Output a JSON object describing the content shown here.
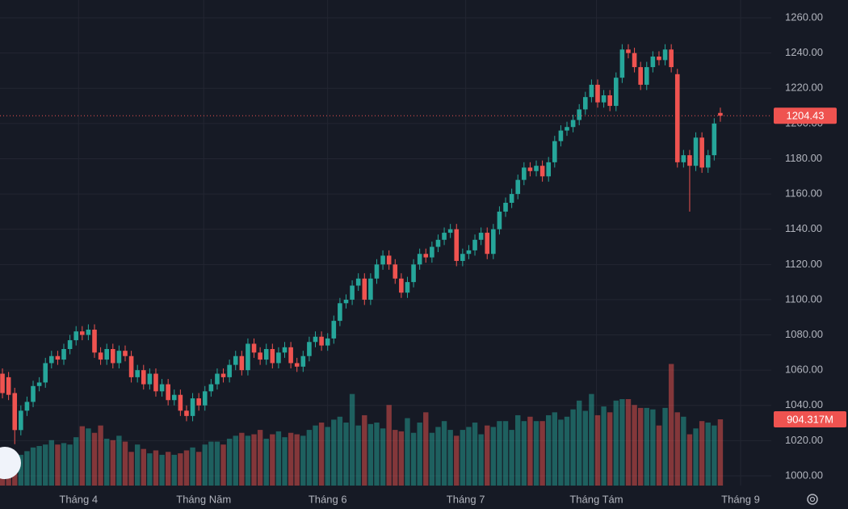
{
  "chart_data": {
    "type": "candlestick",
    "up_color": "#26a69a",
    "down_color": "#ef5350",
    "grid": true,
    "xlim": [
      -0.4,
      125.3
    ],
    "xticks": [
      {
        "value": 12.4,
        "label": "Tháng 4"
      },
      {
        "value": 32.8,
        "label": "Tháng Năm"
      },
      {
        "value": 53,
        "label": "Tháng 6"
      },
      {
        "value": 75.5,
        "label": "Tháng 7"
      },
      {
        "value": 96.8,
        "label": "Tháng Tám"
      },
      {
        "value": 120.3,
        "label": "Tháng 9"
      }
    ],
    "ylim": [
      994.5,
      1270.1
    ],
    "yticks": [
      {
        "value": 1000,
        "label": "1000.00"
      },
      {
        "value": 1020,
        "label": "1020.00"
      },
      {
        "value": 1040,
        "label": "1040.00"
      },
      {
        "value": 1060,
        "label": "1060.00"
      },
      {
        "value": 1080,
        "label": "1080.00"
      },
      {
        "value": 1100,
        "label": "1100.00"
      },
      {
        "value": 1120,
        "label": "1120.00"
      },
      {
        "value": 1140,
        "label": "1140.00"
      },
      {
        "value": 1160,
        "label": "1160.00"
      },
      {
        "value": 1180,
        "label": "1180.00"
      },
      {
        "value": 1200,
        "label": "1200.00"
      },
      {
        "value": 1220,
        "label": "1220.00"
      },
      {
        "value": 1240,
        "label": "1240.00"
      },
      {
        "value": 1260,
        "label": "1260.00"
      }
    ],
    "y2lim": [
      0,
      6628
    ],
    "open": [
      1058,
      1056,
      1047,
      1026,
      1037,
      1042,
      1051,
      1053,
      1064,
      1068,
      1066,
      1072,
      1077,
      1082,
      1080,
      1083,
      1070,
      1066,
      1072,
      1064,
      1071,
      1068,
      1056,
      1060,
      1052,
      1058,
      1048,
      1052,
      1043,
      1046,
      1037,
      1034,
      1044,
      1040,
      1048,
      1052,
      1058,
      1056,
      1063,
      1068,
      1060,
      1075,
      1070,
      1066,
      1072,
      1064,
      1070,
      1073,
      1064,
      1062,
      1068,
      1076,
      1079,
      1074,
      1078,
      1088,
      1098,
      1100,
      1108,
      1112,
      1100,
      1112,
      1120,
      1125,
      1120,
      1112,
      1104,
      1110,
      1120,
      1126,
      1124,
      1130,
      1134,
      1138,
      1140,
      1122,
      1126,
      1128,
      1134,
      1138,
      1126,
      1140,
      1150,
      1155,
      1160,
      1168,
      1175,
      1173,
      1176,
      1170,
      1178,
      1190,
      1196,
      1198,
      1202,
      1208,
      1215,
      1222,
      1212,
      1216,
      1210,
      1226,
      1242,
      1240,
      1232,
      1222,
      1232,
      1238,
      1236,
      1242,
      1228,
      1178,
      1182,
      1176,
      1192,
      1175,
      1182,
      1206
    ],
    "high": [
      1061,
      1059,
      1050,
      1040,
      1045,
      1054,
      1056,
      1067,
      1071,
      1071,
      1075,
      1080,
      1085,
      1085,
      1086,
      1086,
      1073,
      1075,
      1075,
      1074,
      1074,
      1071,
      1063,
      1063,
      1061,
      1061,
      1055,
      1055,
      1049,
      1049,
      1040,
      1047,
      1047,
      1051,
      1055,
      1061,
      1061,
      1066,
      1071,
      1071,
      1078,
      1078,
      1073,
      1075,
      1075,
      1073,
      1076,
      1076,
      1067,
      1071,
      1079,
      1082,
      1082,
      1081,
      1091,
      1101,
      1103,
      1111,
      1115,
      1115,
      1115,
      1123,
      1128,
      1128,
      1123,
      1115,
      1113,
      1123,
      1129,
      1129,
      1133,
      1137,
      1141,
      1143,
      1143,
      1129,
      1131,
      1137,
      1141,
      1141,
      1143,
      1153,
      1158,
      1163,
      1171,
      1178,
      1178,
      1179,
      1179,
      1181,
      1193,
      1199,
      1201,
      1205,
      1211,
      1218,
      1225,
      1225,
      1219,
      1219,
      1229,
      1245,
      1245,
      1243,
      1235,
      1235,
      1241,
      1241,
      1245,
      1245,
      1231,
      1185,
      1185,
      1195,
      1195,
      1185,
      1203,
      1209
    ],
    "low": [
      1044,
      1043,
      1018,
      1023,
      1034,
      1039,
      1048,
      1050,
      1061,
      1063,
      1063,
      1069,
      1074,
      1077,
      1077,
      1067,
      1063,
      1063,
      1061,
      1061,
      1065,
      1053,
      1053,
      1049,
      1049,
      1045,
      1045,
      1040,
      1040,
      1034,
      1031,
      1031,
      1037,
      1037,
      1045,
      1049,
      1053,
      1053,
      1060,
      1057,
      1057,
      1067,
      1063,
      1063,
      1061,
      1061,
      1067,
      1061,
      1059,
      1059,
      1065,
      1073,
      1071,
      1071,
      1075,
      1085,
      1095,
      1097,
      1105,
      1097,
      1097,
      1109,
      1117,
      1117,
      1109,
      1101,
      1101,
      1107,
      1117,
      1121,
      1121,
      1127,
      1131,
      1135,
      1119,
      1119,
      1123,
      1125,
      1131,
      1123,
      1123,
      1137,
      1147,
      1152,
      1157,
      1165,
      1170,
      1170,
      1167,
      1167,
      1175,
      1187,
      1193,
      1195,
      1199,
      1205,
      1212,
      1209,
      1209,
      1207,
      1207,
      1223,
      1237,
      1229,
      1219,
      1219,
      1229,
      1233,
      1233,
      1229,
      1175,
      1175,
      1150,
      1173,
      1172,
      1172,
      1179,
      1201
    ],
    "close": [
      1047,
      1046,
      1026,
      1037,
      1042,
      1051,
      1053,
      1064,
      1068,
      1066,
      1072,
      1077,
      1082,
      1080,
      1083,
      1070,
      1066,
      1072,
      1064,
      1071,
      1068,
      1056,
      1060,
      1052,
      1058,
      1048,
      1052,
      1043,
      1046,
      1037,
      1034,
      1044,
      1040,
      1048,
      1052,
      1058,
      1056,
      1063,
      1068,
      1060,
      1075,
      1070,
      1066,
      1072,
      1064,
      1070,
      1073,
      1064,
      1062,
      1068,
      1076,
      1079,
      1074,
      1078,
      1088,
      1098,
      1100,
      1108,
      1112,
      1100,
      1112,
      1120,
      1125,
      1120,
      1112,
      1104,
      1110,
      1120,
      1126,
      1124,
      1130,
      1134,
      1138,
      1140,
      1122,
      1126,
      1128,
      1134,
      1138,
      1126,
      1140,
      1150,
      1155,
      1160,
      1168,
      1175,
      1173,
      1176,
      1170,
      1178,
      1190,
      1196,
      1198,
      1202,
      1208,
      1215,
      1222,
      1212,
      1216,
      1210,
      1226,
      1242,
      1240,
      1232,
      1222,
      1232,
      1238,
      1236,
      1242,
      1232,
      1178,
      1182,
      1176,
      1192,
      1175,
      1182,
      1200,
      1204.43
    ],
    "volume": {
      "axis": "y2",
      "values": [
        400,
        380,
        390,
        420,
        470,
        520,
        540,
        560,
        620,
        560,
        580,
        560,
        660,
        810,
        780,
        720,
        820,
        640,
        620,
        680,
        600,
        460,
        560,
        500,
        440,
        480,
        420,
        460,
        420,
        440,
        480,
        520,
        460,
        560,
        600,
        600,
        560,
        640,
        680,
        720,
        680,
        700,
        760,
        640,
        700,
        740,
        660,
        720,
        700,
        680,
        760,
        820,
        860,
        800,
        900,
        940,
        860,
        1250,
        820,
        960,
        840,
        860,
        780,
        1100,
        760,
        740,
        920,
        720,
        860,
        1000,
        720,
        800,
        880,
        760,
        680,
        760,
        800,
        860,
        700,
        820,
        800,
        880,
        880,
        760,
        960,
        880,
        940,
        880,
        880,
        960,
        1000,
        900,
        940,
        1040,
        1160,
        1020,
        1250,
        960,
        1080,
        1000,
        1160,
        1180,
        1180,
        1100,
        1060,
        1060,
        1040,
        820,
        1060,
        1660,
        1000,
        940,
        700,
        780,
        880,
        860,
        820,
        904.317
      ]
    },
    "last_price": 1204.43,
    "last_volume": {
      "value": 904.317,
      "label": "904.317M"
    }
  }
}
